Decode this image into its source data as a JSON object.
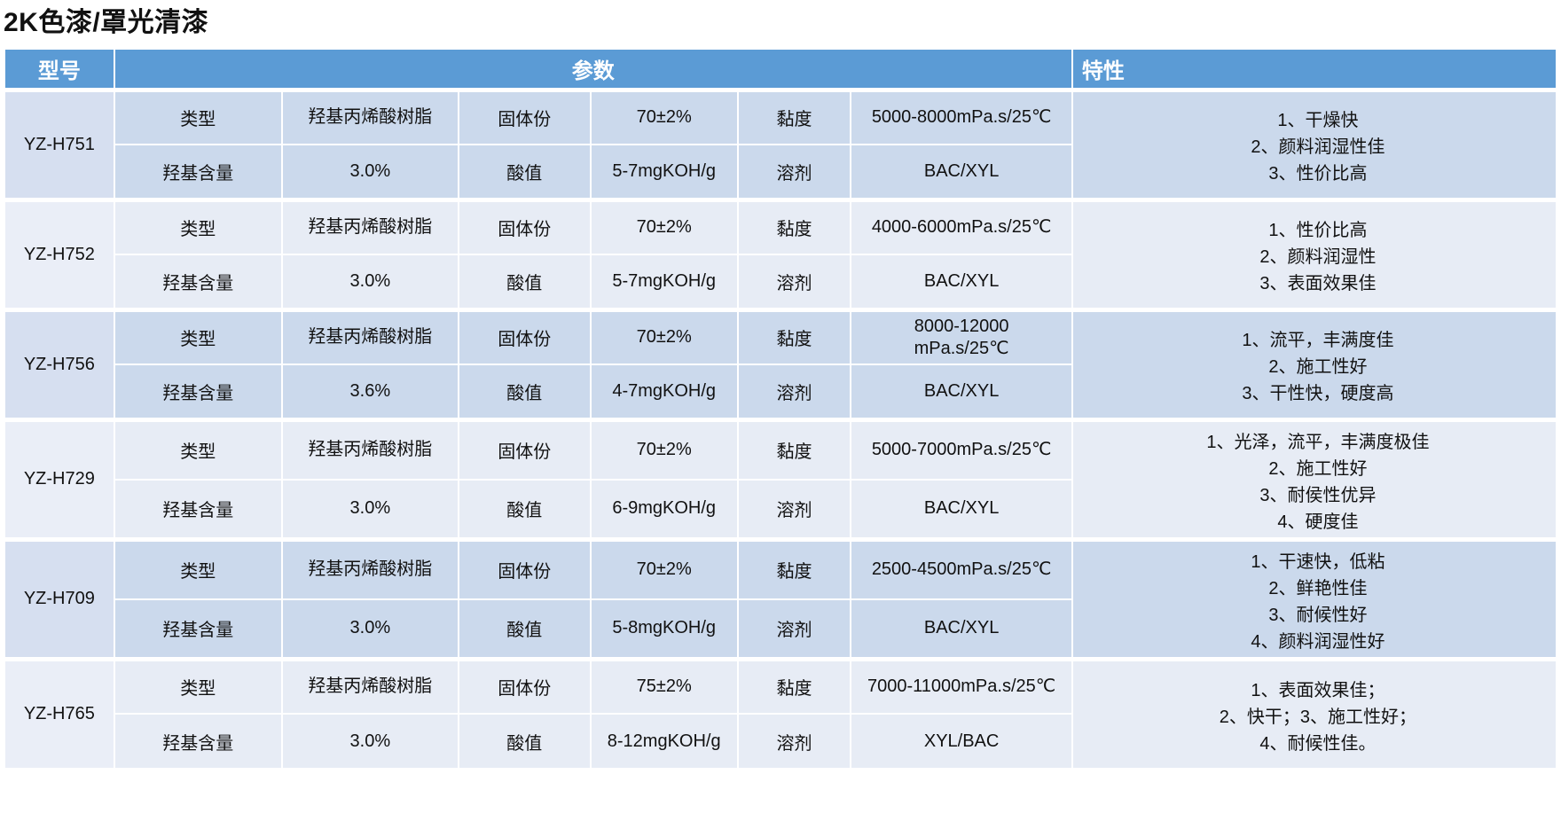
{
  "title": "2K色漆/罩光清漆",
  "colors": {
    "header_bg": "#5B9BD5",
    "header_text": "#FFFFFF",
    "band_dark": "#CBD9EC",
    "band_dark_model": "#D6DFF0",
    "band_light": "#E7ECF5",
    "band_light_model": "#EAEEF7",
    "grid": "#FFFFFF",
    "text": "#111111"
  },
  "table": {
    "header": {
      "model": "型号",
      "params": "参数",
      "features": "特性"
    },
    "products": [
      {
        "model": "YZ-H751",
        "row1": [
          "类型",
          "羟基丙烯酸树脂",
          "固体份",
          "70±2%",
          "黏度",
          "5000-8000mPa.s/25℃"
        ],
        "row2": [
          "羟基含量",
          "3.0%",
          "酸值",
          "5-7mgKOH/g",
          "溶剂",
          "BAC/XYL"
        ],
        "features": [
          "1、干燥快",
          "2、颜料润湿性佳",
          "3、性价比高"
        ]
      },
      {
        "model": "YZ-H752",
        "row1": [
          "类型",
          "羟基丙烯酸树脂",
          "固体份",
          "70±2%",
          "黏度",
          "4000-6000mPa.s/25℃"
        ],
        "row2": [
          "羟基含量",
          "3.0%",
          "酸值",
          "5-7mgKOH/g",
          "溶剂",
          "BAC/XYL"
        ],
        "features": [
          "1、性价比高",
          "2、颜料润湿性",
          "3、表面效果佳"
        ]
      },
      {
        "model": "YZ-H756",
        "row1": [
          "类型",
          "羟基丙烯酸树脂",
          "固体份",
          "70±2%",
          "黏度",
          "8000-12000\nmPa.s/25℃"
        ],
        "row2": [
          "羟基含量",
          "3.6%",
          "酸值",
          "4-7mgKOH/g",
          "溶剂",
          "BAC/XYL"
        ],
        "features": [
          "1、流平，丰满度佳",
          "2、施工性好",
          "3、干性快，硬度高"
        ]
      },
      {
        "model": "YZ-H729",
        "row1": [
          "类型",
          "羟基丙烯酸树脂",
          "固体份",
          "70±2%",
          "黏度",
          "5000-7000mPa.s/25℃"
        ],
        "row2": [
          "羟基含量",
          "3.0%",
          "酸值",
          "6-9mgKOH/g",
          "溶剂",
          "BAC/XYL"
        ],
        "features": [
          "1、光泽，流平，丰满度极佳",
          "2、施工性好",
          "3、耐侯性优异",
          "4、硬度佳"
        ]
      },
      {
        "model": "YZ-H709",
        "row1": [
          "类型",
          "羟基丙烯酸树脂",
          "固体份",
          "70±2%",
          "黏度",
          "2500-4500mPa.s/25℃"
        ],
        "row2": [
          "羟基含量",
          "3.0%",
          "酸值",
          "5-8mgKOH/g",
          "溶剂",
          "BAC/XYL"
        ],
        "features": [
          "1、干速快，低粘",
          "2、鲜艳性佳",
          "3、耐候性好",
          "4、颜料润湿性好"
        ]
      },
      {
        "model": "YZ-H765",
        "row1": [
          "类型",
          "羟基丙烯酸树脂",
          "固体份",
          "75±2%",
          "黏度",
          "7000-11000mPa.s/25℃"
        ],
        "row2": [
          "羟基含量",
          "3.0%",
          "酸值",
          "8-12mgKOH/g",
          "溶剂",
          "XYL/BAC"
        ],
        "features": [
          "1、表面效果佳；",
          "2、快干；3、施工性好；",
          "4、耐候性佳。"
        ]
      }
    ]
  }
}
